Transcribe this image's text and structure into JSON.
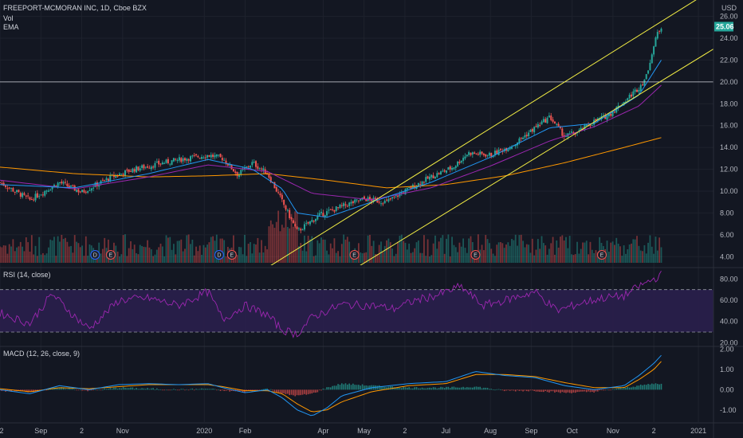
{
  "header": {
    "symbol_line": "FREEPORT-MCMORAN INC, 1D, Cboe BZX",
    "vol_label": "Vol",
    "ema_label": "EMA",
    "currency": "USD"
  },
  "rsi_label": "RSI (14, close)",
  "macd_label": "MACD (12, 26, close, 9)",
  "colors": {
    "background": "#131722",
    "up": "#26a69a",
    "down": "#ef5350",
    "ema_fast": "#2196f3",
    "ema_slow": "#9c27b0",
    "ema_long": "#ff9800",
    "channel": "#f5f044",
    "rsi_line": "#9c27b0",
    "rsi_band": "#2a1f4d",
    "macd_line": "#2196f3",
    "signal_line": "#ff9800",
    "price_badge": "#26a69a"
  },
  "events": [
    "D",
    "E",
    "D",
    "E",
    "E",
    "E",
    "E"
  ],
  "chart_data": [
    {
      "type": "candlestick",
      "title": "FREEPORT-MCMORAN INC, 1D, Cboe BZX",
      "ylabel": "USD",
      "y_ticks": [
        "26.00",
        "24.00",
        "22.00",
        "20.00",
        "18.00",
        "16.00",
        "14.00",
        "12.00",
        "10.00",
        "8.00",
        "6.00",
        "4.00"
      ],
      "ylim": [
        3.0,
        27.5
      ],
      "last_price": "25.06",
      "horizontal_line": 20.0,
      "x_ticks": [
        "2",
        "Sep",
        "2",
        "Nov",
        "2020",
        "Feb",
        "Apr",
        "May",
        "2",
        "Jul",
        "Aug",
        "Sep",
        "Oct",
        "Nov",
        "2",
        "2021"
      ],
      "channel_upper": [
        [
          0.36,
          3.0
        ],
        [
          0.96,
          28.5
        ]
      ],
      "channel_lower": [
        [
          0.48,
          3.0
        ],
        [
          0.96,
          23.0
        ]
      ],
      "price_keypoints": [
        [
          0.0,
          10.8
        ],
        [
          0.04,
          9.2
        ],
        [
          0.08,
          10.8
        ],
        [
          0.11,
          9.9
        ],
        [
          0.15,
          11.3
        ],
        [
          0.18,
          12.0
        ],
        [
          0.22,
          12.6
        ],
        [
          0.25,
          13.0
        ],
        [
          0.28,
          13.3
        ],
        [
          0.3,
          13.0
        ],
        [
          0.32,
          11.5
        ],
        [
          0.34,
          12.6
        ],
        [
          0.36,
          11.6
        ],
        [
          0.375,
          9.7
        ],
        [
          0.4,
          6.3
        ],
        [
          0.43,
          7.8
        ],
        [
          0.46,
          8.6
        ],
        [
          0.49,
          9.3
        ],
        [
          0.52,
          9.0
        ],
        [
          0.55,
          10.2
        ],
        [
          0.58,
          11.3
        ],
        [
          0.61,
          12.2
        ],
        [
          0.63,
          13.5
        ],
        [
          0.66,
          13.3
        ],
        [
          0.69,
          14.2
        ],
        [
          0.72,
          15.8
        ],
        [
          0.74,
          16.8
        ],
        [
          0.76,
          15.0
        ],
        [
          0.78,
          15.5
        ],
        [
          0.8,
          16.4
        ],
        [
          0.82,
          17.0
        ],
        [
          0.84,
          18.2
        ],
        [
          0.86,
          19.5
        ],
        [
          0.87,
          20.5
        ],
        [
          0.875,
          22.0
        ],
        [
          0.885,
          24.5
        ],
        [
          0.89,
          25.06
        ]
      ],
      "ema_fast_keypoints": [
        [
          0.0,
          10.6
        ],
        [
          0.1,
          10.3
        ],
        [
          0.2,
          11.6
        ],
        [
          0.28,
          12.9
        ],
        [
          0.34,
          12.0
        ],
        [
          0.38,
          10.2
        ],
        [
          0.4,
          8.0
        ],
        [
          0.44,
          7.6
        ],
        [
          0.5,
          9.0
        ],
        [
          0.58,
          10.8
        ],
        [
          0.66,
          13.1
        ],
        [
          0.74,
          15.8
        ],
        [
          0.8,
          16.2
        ],
        [
          0.86,
          18.8
        ],
        [
          0.89,
          22.0
        ]
      ],
      "ema_mid_keypoints": [
        [
          0.0,
          11.0
        ],
        [
          0.1,
          10.2
        ],
        [
          0.2,
          11.3
        ],
        [
          0.28,
          12.4
        ],
        [
          0.36,
          11.8
        ],
        [
          0.42,
          9.8
        ],
        [
          0.5,
          9.2
        ],
        [
          0.58,
          10.3
        ],
        [
          0.66,
          12.3
        ],
        [
          0.74,
          14.6
        ],
        [
          0.8,
          15.9
        ],
        [
          0.86,
          17.8
        ],
        [
          0.89,
          19.7
        ]
      ],
      "ema_long_keypoints": [
        [
          0.0,
          12.2
        ],
        [
          0.1,
          11.6
        ],
        [
          0.2,
          11.3
        ],
        [
          0.28,
          11.4
        ],
        [
          0.36,
          11.6
        ],
        [
          0.44,
          11.0
        ],
        [
          0.52,
          10.3
        ],
        [
          0.6,
          10.6
        ],
        [
          0.68,
          11.4
        ],
        [
          0.76,
          12.6
        ],
        [
          0.84,
          14.0
        ],
        [
          0.89,
          14.9
        ]
      ]
    },
    {
      "type": "line",
      "title": "RSI (14, close)",
      "y_ticks": [
        "80.00",
        "60.00",
        "40.00",
        "20.00"
      ],
      "ylim": [
        18,
        90
      ],
      "bands": [
        30,
        70
      ],
      "keypoints": [
        [
          0.0,
          48
        ],
        [
          0.04,
          38
        ],
        [
          0.07,
          66
        ],
        [
          0.1,
          45
        ],
        [
          0.12,
          33
        ],
        [
          0.16,
          60
        ],
        [
          0.2,
          62
        ],
        [
          0.24,
          55
        ],
        [
          0.28,
          68
        ],
        [
          0.3,
          42
        ],
        [
          0.33,
          55
        ],
        [
          0.36,
          46
        ],
        [
          0.38,
          32
        ],
        [
          0.4,
          28
        ],
        [
          0.42,
          44
        ],
        [
          0.46,
          56
        ],
        [
          0.5,
          55
        ],
        [
          0.53,
          52
        ],
        [
          0.56,
          60
        ],
        [
          0.59,
          65
        ],
        [
          0.62,
          73
        ],
        [
          0.65,
          55
        ],
        [
          0.68,
          60
        ],
        [
          0.72,
          68
        ],
        [
          0.75,
          50
        ],
        [
          0.78,
          57
        ],
        [
          0.81,
          62
        ],
        [
          0.84,
          64
        ],
        [
          0.86,
          73
        ],
        [
          0.88,
          80
        ],
        [
          0.89,
          84
        ]
      ]
    },
    {
      "type": "line",
      "title": "MACD (12, 26, close, 9)",
      "y_ticks": [
        "2.00",
        "1.00",
        "0.00",
        "-1.00"
      ],
      "ylim": [
        -1.6,
        2.1
      ],
      "macd_keypoints": [
        [
          0.0,
          0.0
        ],
        [
          0.04,
          -0.2
        ],
        [
          0.08,
          0.2
        ],
        [
          0.12,
          0.0
        ],
        [
          0.16,
          0.25
        ],
        [
          0.2,
          0.3
        ],
        [
          0.24,
          0.25
        ],
        [
          0.28,
          0.3
        ],
        [
          0.3,
          0.1
        ],
        [
          0.33,
          -0.15
        ],
        [
          0.36,
          0.0
        ],
        [
          0.38,
          -0.4
        ],
        [
          0.4,
          -1.0
        ],
        [
          0.42,
          -1.3
        ],
        [
          0.44,
          -0.9
        ],
        [
          0.46,
          -0.3
        ],
        [
          0.5,
          0.1
        ],
        [
          0.55,
          0.3
        ],
        [
          0.6,
          0.4
        ],
        [
          0.64,
          0.9
        ],
        [
          0.68,
          0.7
        ],
        [
          0.72,
          0.6
        ],
        [
          0.76,
          0.2
        ],
        [
          0.8,
          0.0
        ],
        [
          0.84,
          0.2
        ],
        [
          0.86,
          0.7
        ],
        [
          0.88,
          1.3
        ],
        [
          0.89,
          1.7
        ]
      ],
      "signal_keypoints": [
        [
          0.0,
          0.05
        ],
        [
          0.04,
          -0.1
        ],
        [
          0.08,
          0.1
        ],
        [
          0.12,
          0.05
        ],
        [
          0.16,
          0.15
        ],
        [
          0.2,
          0.25
        ],
        [
          0.24,
          0.25
        ],
        [
          0.28,
          0.25
        ],
        [
          0.3,
          0.15
        ],
        [
          0.33,
          -0.05
        ],
        [
          0.36,
          -0.05
        ],
        [
          0.38,
          -0.2
        ],
        [
          0.4,
          -0.7
        ],
        [
          0.42,
          -1.1
        ],
        [
          0.44,
          -1.0
        ],
        [
          0.46,
          -0.6
        ],
        [
          0.5,
          -0.1
        ],
        [
          0.55,
          0.2
        ],
        [
          0.6,
          0.3
        ],
        [
          0.64,
          0.75
        ],
        [
          0.68,
          0.75
        ],
        [
          0.72,
          0.65
        ],
        [
          0.76,
          0.35
        ],
        [
          0.8,
          0.1
        ],
        [
          0.84,
          0.1
        ],
        [
          0.86,
          0.5
        ],
        [
          0.88,
          1.0
        ],
        [
          0.89,
          1.4
        ]
      ]
    }
  ]
}
